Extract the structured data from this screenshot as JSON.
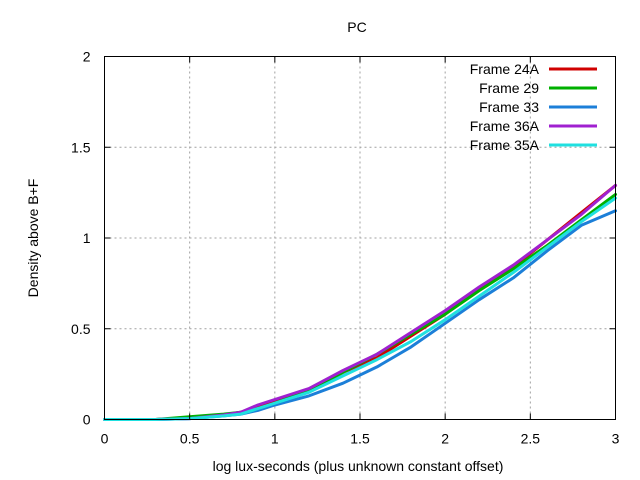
{
  "chart_data": {
    "type": "line",
    "title": "PC",
    "xlabel": "log lux-seconds (plus unknown constant offset)",
    "ylabel": "Density above B+F",
    "xlim": [
      0,
      3
    ],
    "ylim": [
      0,
      2
    ],
    "xticks": [
      "0",
      "0.5",
      "1",
      "1.5",
      "2",
      "2.5",
      "3"
    ],
    "yticks": [
      "0",
      "0.5",
      "1",
      "1.5",
      "2"
    ],
    "grid": true,
    "legend_position": "top-right",
    "series": [
      {
        "name": "Frame 24A",
        "color": "#d00000",
        "x": [
          0,
          0.3,
          0.5,
          0.7,
          0.8,
          0.9,
          1.0,
          1.2,
          1.4,
          1.6,
          1.8,
          2.0,
          2.2,
          2.4,
          2.6,
          2.8,
          3.0
        ],
        "y": [
          0,
          0.0,
          0.01,
          0.025,
          0.04,
          0.07,
          0.1,
          0.16,
          0.26,
          0.34,
          0.46,
          0.58,
          0.72,
          0.84,
          0.99,
          1.14,
          1.29
        ]
      },
      {
        "name": "Frame 29",
        "color": "#00b000",
        "x": [
          0,
          0.3,
          0.5,
          0.7,
          0.8,
          0.9,
          1.0,
          1.2,
          1.4,
          1.6,
          1.8,
          2.0,
          2.2,
          2.4,
          2.6,
          2.8,
          3.0
        ],
        "y": [
          0,
          0.0,
          0.015,
          0.03,
          0.04,
          0.06,
          0.09,
          0.16,
          0.26,
          0.36,
          0.47,
          0.58,
          0.71,
          0.83,
          0.96,
          1.1,
          1.24
        ]
      },
      {
        "name": "Frame 33",
        "color": "#1c7fd8",
        "x": [
          0,
          0.3,
          0.5,
          0.7,
          0.8,
          0.9,
          1.0,
          1.2,
          1.4,
          1.6,
          1.8,
          2.0,
          2.2,
          2.4,
          2.6,
          2.8,
          3.0
        ],
        "y": [
          0,
          0.0,
          0.005,
          0.02,
          0.03,
          0.05,
          0.08,
          0.13,
          0.2,
          0.29,
          0.4,
          0.53,
          0.66,
          0.78,
          0.93,
          1.07,
          1.15
        ]
      },
      {
        "name": "Frame 36A",
        "color": "#a020d0",
        "x": [
          0,
          0.3,
          0.5,
          0.7,
          0.8,
          0.9,
          1.0,
          1.2,
          1.4,
          1.6,
          1.8,
          2.0,
          2.2,
          2.4,
          2.6,
          2.8,
          3.0
        ],
        "y": [
          0,
          0.0,
          0.005,
          0.025,
          0.04,
          0.08,
          0.11,
          0.17,
          0.27,
          0.36,
          0.48,
          0.6,
          0.73,
          0.85,
          0.99,
          1.13,
          1.29
        ]
      },
      {
        "name": "Frame 35A",
        "color": "#20e0e0",
        "x": [
          0,
          0.3,
          0.5,
          0.7,
          0.8,
          0.9,
          1.0,
          1.2,
          1.4,
          1.6,
          1.8,
          2.0,
          2.2,
          2.4,
          2.6,
          2.8,
          3.0
        ],
        "y": [
          0,
          0.0,
          0.005,
          0.02,
          0.03,
          0.06,
          0.09,
          0.15,
          0.24,
          0.33,
          0.43,
          0.55,
          0.68,
          0.81,
          0.95,
          1.09,
          1.22
        ]
      }
    ]
  }
}
